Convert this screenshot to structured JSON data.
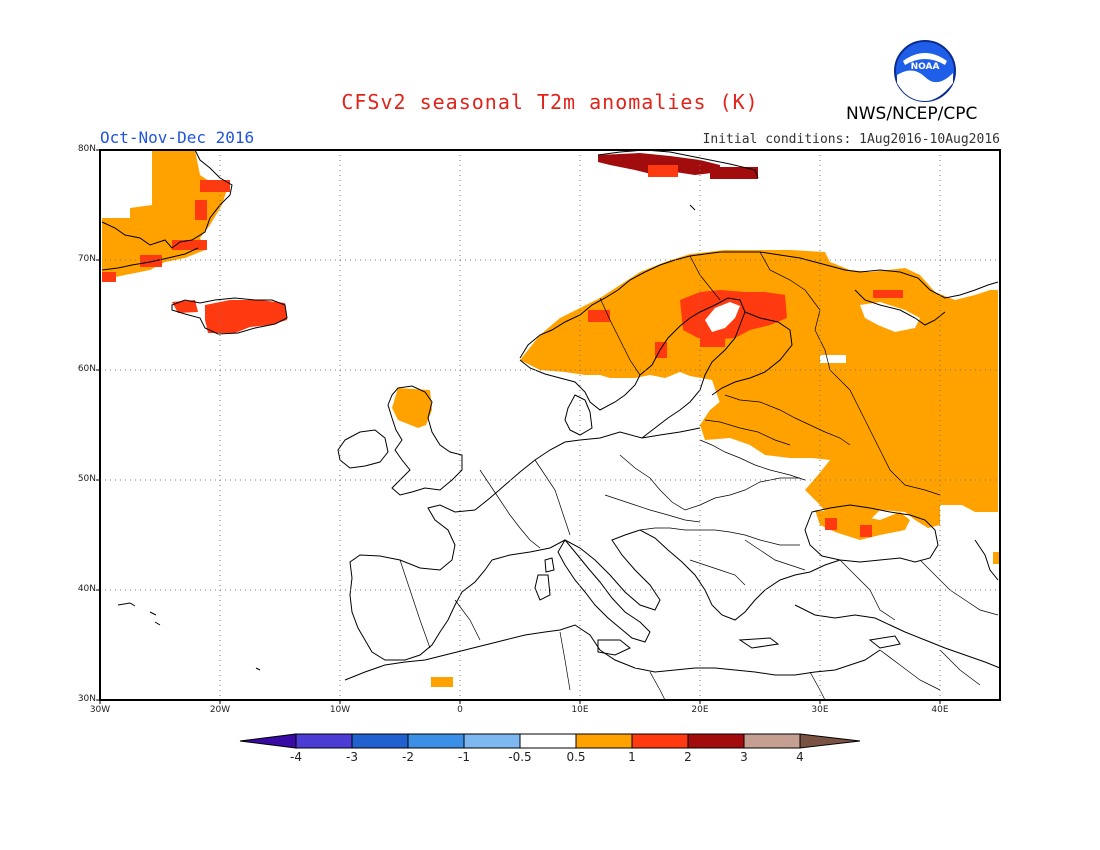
{
  "header": {
    "title": "CFSv2 seasonal T2m anomalies (K)",
    "season": "Oct-Nov-Dec 2016",
    "initial_conditions": "Initial conditions: 1Aug2016-10Aug2016",
    "agency": "NWS/NCEP/CPC",
    "logo_text": "NOAA"
  },
  "map": {
    "lat_labels": [
      "80N",
      "70N",
      "60N",
      "50N",
      "40N",
      "30N"
    ],
    "lon_labels": [
      "30W",
      "20W",
      "10W",
      "0",
      "10E",
      "20E",
      "30E",
      "40E"
    ],
    "extent": {
      "lon_min": -30,
      "lon_max": 45,
      "lat_min": 30,
      "lat_max": 80
    },
    "grid": "dotted",
    "anomaly_regions": [
      {
        "region": "Greenland east coast",
        "category": "0.5 to 1"
      },
      {
        "region": "Iceland",
        "category": "1 to 2"
      },
      {
        "region": "Scotland",
        "category": "0.5 to 1"
      },
      {
        "region": "Scandinavia",
        "category": "0.5 to 1"
      },
      {
        "region": "Gulf of Bothnia / Finland",
        "category": "1 to 2"
      },
      {
        "region": "Baltic states, Belarus, western Russia",
        "category": "0.5 to 1"
      },
      {
        "region": "Ukraine east / Crimea",
        "category": "0.5 to 1"
      },
      {
        "region": "Svalbard",
        "category": "2 to 3"
      }
    ]
  },
  "colorbar": {
    "labels": [
      "-4",
      "-3",
      "-2",
      "-1",
      "-0.5",
      "0.5",
      "1",
      "2",
      "3",
      "4"
    ],
    "colors": [
      "#3a0aa6",
      "#4b3dd4",
      "#2160cf",
      "#3c8fe6",
      "#7db8f0",
      "#ffffff",
      "#ffa200",
      "#ff3a10",
      "#a30c0c",
      "#c5a092",
      "#7a5244"
    ]
  }
}
